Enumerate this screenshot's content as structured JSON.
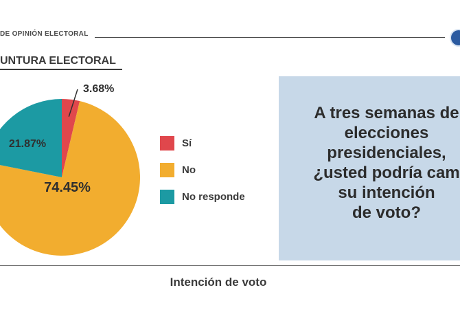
{
  "header": {
    "text": "DE OPINIÓN ELECTORAL"
  },
  "section": {
    "title": "UNTURA ELECTORAL"
  },
  "question": {
    "text": "A tres semanas de\nelecciones\npresidenciales,\n¿usted podría cam\nsu intención\nde voto?"
  },
  "colors": {
    "si": "#e0474c",
    "no": "#f2ad2f",
    "no_responde": "#1c9aa3",
    "question_bg": "#c7d8e8"
  },
  "chart_data": {
    "type": "pie",
    "title": "",
    "caption": "Intención de voto",
    "slices": [
      {
        "label": "Sí",
        "value": 3.68,
        "display": "3.68%",
        "color": "#e0474c"
      },
      {
        "label": "No",
        "value": 74.45,
        "display": "74.45%",
        "color": "#f2ad2f"
      },
      {
        "label": "No responde",
        "value": 21.87,
        "display": "21.87%",
        "color": "#1c9aa3"
      }
    ],
    "legend_position": "right"
  }
}
